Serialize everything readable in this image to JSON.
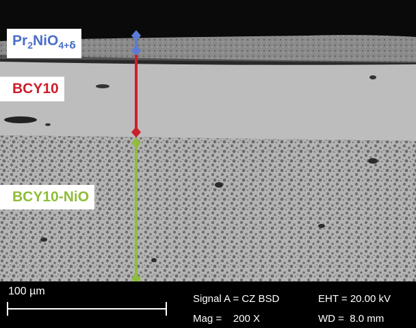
{
  "colors": {
    "top_background": "#0a0a0a",
    "pr_layer": "#8a8a8a",
    "bcy_layer": "#bdbdbd",
    "bcyni_light": "#b4b4b4",
    "bcyni_dark": "#6e6e6e",
    "pr_label": "#4a6ec8",
    "bcy_label": "#cc1f2a",
    "bcyni_label": "#8fbd3a",
    "pr_marker": "#5b7bd6",
    "bcy_marker": "#cc1f2a",
    "bcyni_marker": "#8fbd3a"
  },
  "labels": {
    "pr": {
      "prefix": "Pr",
      "sub1": "2",
      "mid": "NiO",
      "sub2": "4+",
      "delta": "δ"
    },
    "bcy": "BCY10",
    "bcyni": "BCY10-NiO"
  },
  "infobar": {
    "scale": "100 µm",
    "signal": "Signal A = CZ BSD",
    "mag": "Mag =    200 X",
    "eht": "EHT = 20.00 kV",
    "wd": "WD =  8.0 mm"
  }
}
